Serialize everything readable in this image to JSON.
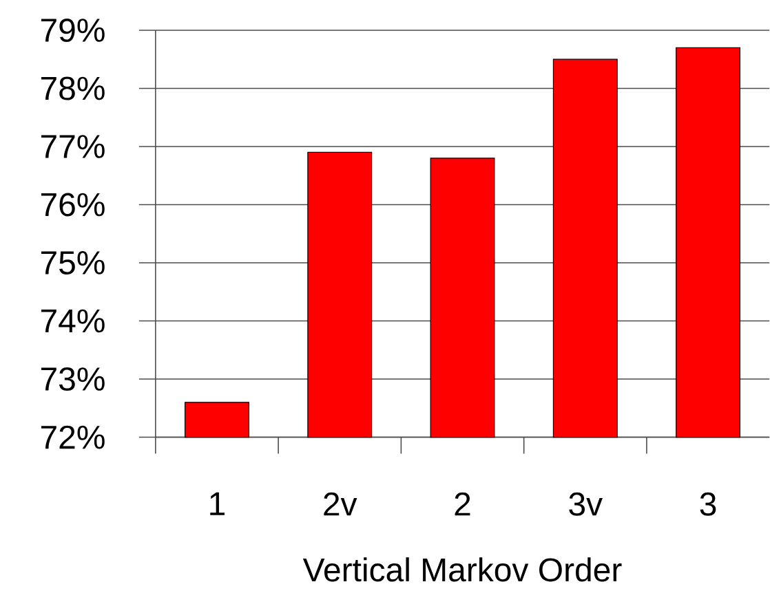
{
  "chart_data": {
    "type": "bar",
    "xlabel": "Vertical Markov Order",
    "categories": [
      "1",
      "2v",
      "2",
      "3v",
      "3"
    ],
    "values": [
      72.6,
      76.9,
      76.8,
      78.5,
      78.7
    ],
    "color": "#ff0000",
    "ylim": [
      72,
      79
    ],
    "yticks": [
      {
        "value": 72,
        "label": "72%"
      },
      {
        "value": 73,
        "label": "73%"
      },
      {
        "value": 74,
        "label": "74%"
      },
      {
        "value": 75,
        "label": "75%"
      },
      {
        "value": 76,
        "label": "76%"
      },
      {
        "value": 77,
        "label": "77%"
      },
      {
        "value": 78,
        "label": "78%"
      },
      {
        "value": 79,
        "label": "79%"
      }
    ],
    "grid": "y"
  }
}
